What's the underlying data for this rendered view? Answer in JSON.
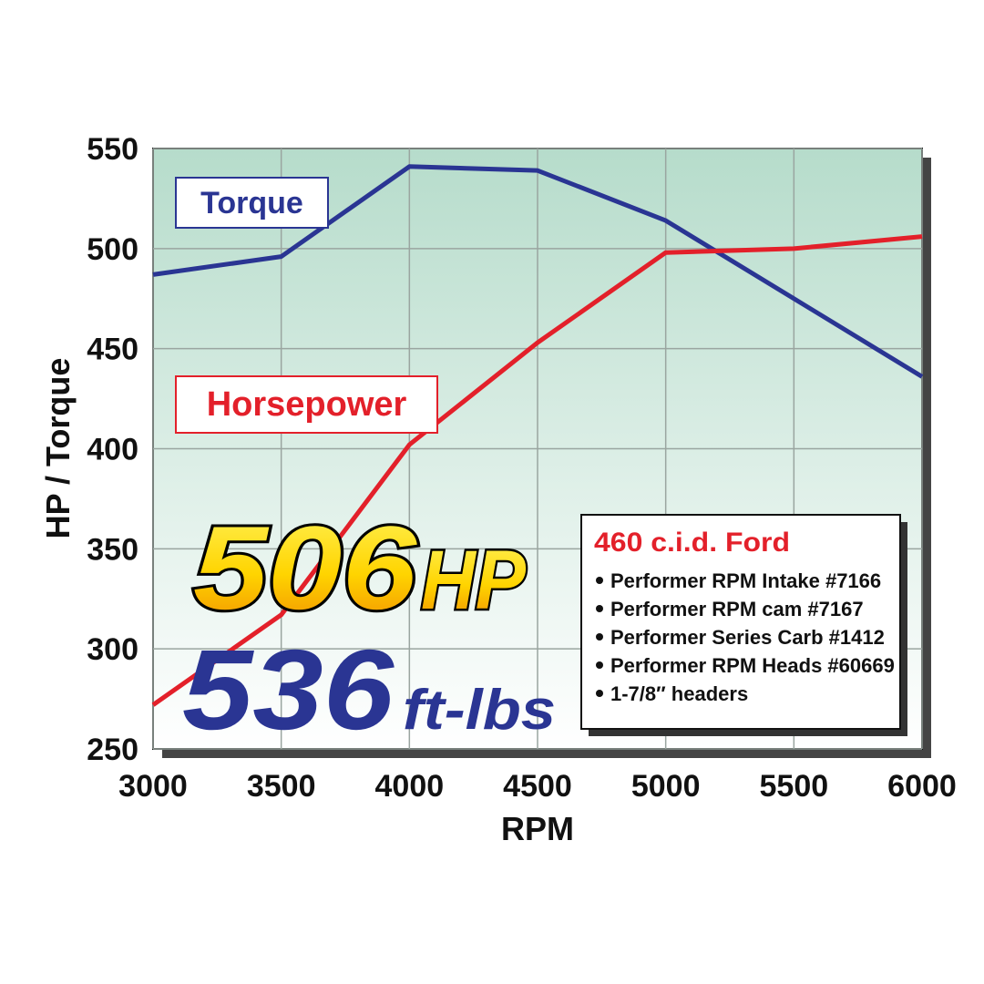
{
  "chart_data": {
    "type": "line",
    "x_label": "RPM",
    "y_label": "HP / Torque",
    "x": [
      3000,
      3500,
      4000,
      4500,
      5000,
      5500,
      6000
    ],
    "series": [
      {
        "name": "Torque",
        "color": "#2a3593",
        "values": [
          487,
          496,
          541,
          539,
          514,
          475,
          436
        ]
      },
      {
        "name": "Horsepower",
        "color": "#e3202a",
        "values": [
          272,
          317,
          402,
          453,
          498,
          500,
          506
        ]
      }
    ],
    "xlim": [
      3000,
      6000
    ],
    "xticks": [
      3000,
      3500,
      4000,
      4500,
      5000,
      5500,
      6000
    ],
    "ylim": [
      250,
      550
    ],
    "yticks": [
      250,
      300,
      350,
      400,
      450,
      500,
      550
    ],
    "grid": true,
    "annotations": {
      "hp_value": "506",
      "hp_unit": "HP",
      "torque_value": "536",
      "torque_unit": "ft-lbs"
    },
    "info_box": {
      "title": "460 c.i.d. Ford",
      "items": [
        "Performer RPM Intake #7166",
        "Performer RPM cam #7167",
        "Performer Series Carb #1412",
        "Performer RPM Heads #60669",
        "1-7/8″ headers"
      ]
    }
  }
}
